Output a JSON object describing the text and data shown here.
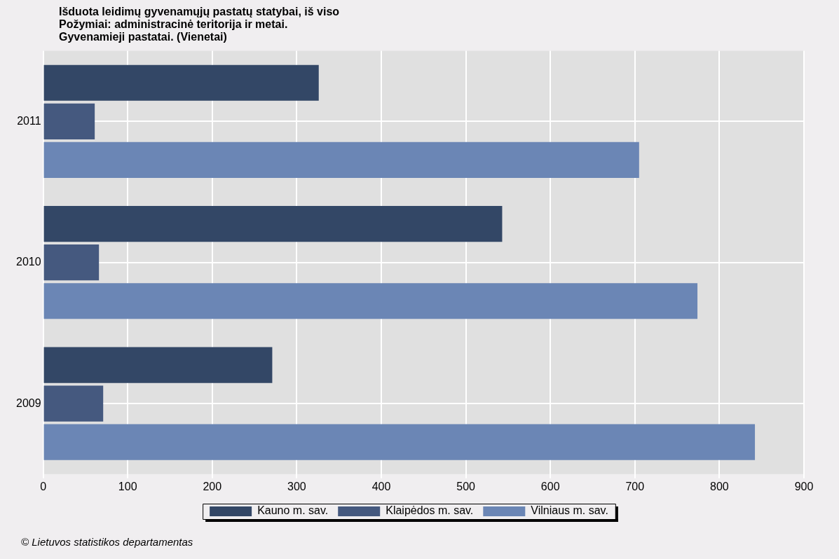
{
  "chart_data": {
    "type": "bar",
    "orientation": "horizontal",
    "title": "Išduota leidimų gyvenamųjų pastatų statybai, iš viso",
    "subtitle": "Požymiai: administracinė teritorija ir metai.\nGyvenamieji pastatai. (Vienetai)",
    "categories": [
      "2011",
      "2010",
      "2009"
    ],
    "series": [
      {
        "name": "Kauno m. sav.",
        "color": "#334766",
        "values": [
          326,
          543,
          271
        ]
      },
      {
        "name": "Klaipėdos m. sav.",
        "color": "#45597f",
        "values": [
          61,
          66,
          71
        ]
      },
      {
        "name": "Vilniaus m. sav.",
        "color": "#6b86b5",
        "values": [
          705,
          774,
          842
        ]
      }
    ],
    "xlim": [
      0,
      900
    ],
    "xticks": [
      0,
      100,
      200,
      300,
      400,
      500,
      600,
      700,
      800,
      900
    ],
    "grid": true,
    "legend": "bottom",
    "annotations": [
      "© Lietuvos statistikos departamentas"
    ]
  }
}
